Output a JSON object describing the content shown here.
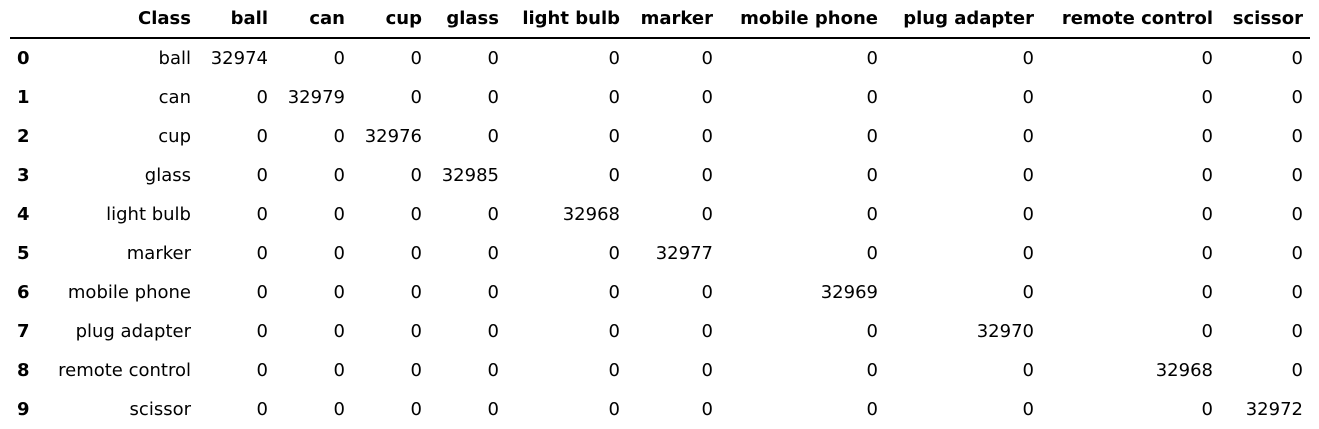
{
  "table": {
    "index_header": "",
    "headers": [
      "Class",
      "ball",
      "can",
      "cup",
      "glass",
      "light bulb",
      "marker",
      "mobile phone",
      "plug adapter",
      "remote control",
      "scissor"
    ],
    "rows": [
      {
        "index": "0",
        "cells": [
          "ball",
          "32974",
          "0",
          "0",
          "0",
          "0",
          "0",
          "0",
          "0",
          "0",
          "0"
        ]
      },
      {
        "index": "1",
        "cells": [
          "can",
          "0",
          "32979",
          "0",
          "0",
          "0",
          "0",
          "0",
          "0",
          "0",
          "0"
        ]
      },
      {
        "index": "2",
        "cells": [
          "cup",
          "0",
          "0",
          "32976",
          "0",
          "0",
          "0",
          "0",
          "0",
          "0",
          "0"
        ]
      },
      {
        "index": "3",
        "cells": [
          "glass",
          "0",
          "0",
          "0",
          "32985",
          "0",
          "0",
          "0",
          "0",
          "0",
          "0"
        ]
      },
      {
        "index": "4",
        "cells": [
          "light bulb",
          "0",
          "0",
          "0",
          "0",
          "32968",
          "0",
          "0",
          "0",
          "0",
          "0"
        ]
      },
      {
        "index": "5",
        "cells": [
          "marker",
          "0",
          "0",
          "0",
          "0",
          "0",
          "32977",
          "0",
          "0",
          "0",
          "0"
        ]
      },
      {
        "index": "6",
        "cells": [
          "mobile phone",
          "0",
          "0",
          "0",
          "0",
          "0",
          "0",
          "32969",
          "0",
          "0",
          "0"
        ]
      },
      {
        "index": "7",
        "cells": [
          "plug adapter",
          "0",
          "0",
          "0",
          "0",
          "0",
          "0",
          "0",
          "32970",
          "0",
          "0"
        ]
      },
      {
        "index": "8",
        "cells": [
          "remote control",
          "0",
          "0",
          "0",
          "0",
          "0",
          "0",
          "0",
          "0",
          "32968",
          "0"
        ]
      },
      {
        "index": "9",
        "cells": [
          "scissor",
          "0",
          "0",
          "0",
          "0",
          "0",
          "0",
          "0",
          "0",
          "0",
          "32972"
        ]
      }
    ]
  }
}
